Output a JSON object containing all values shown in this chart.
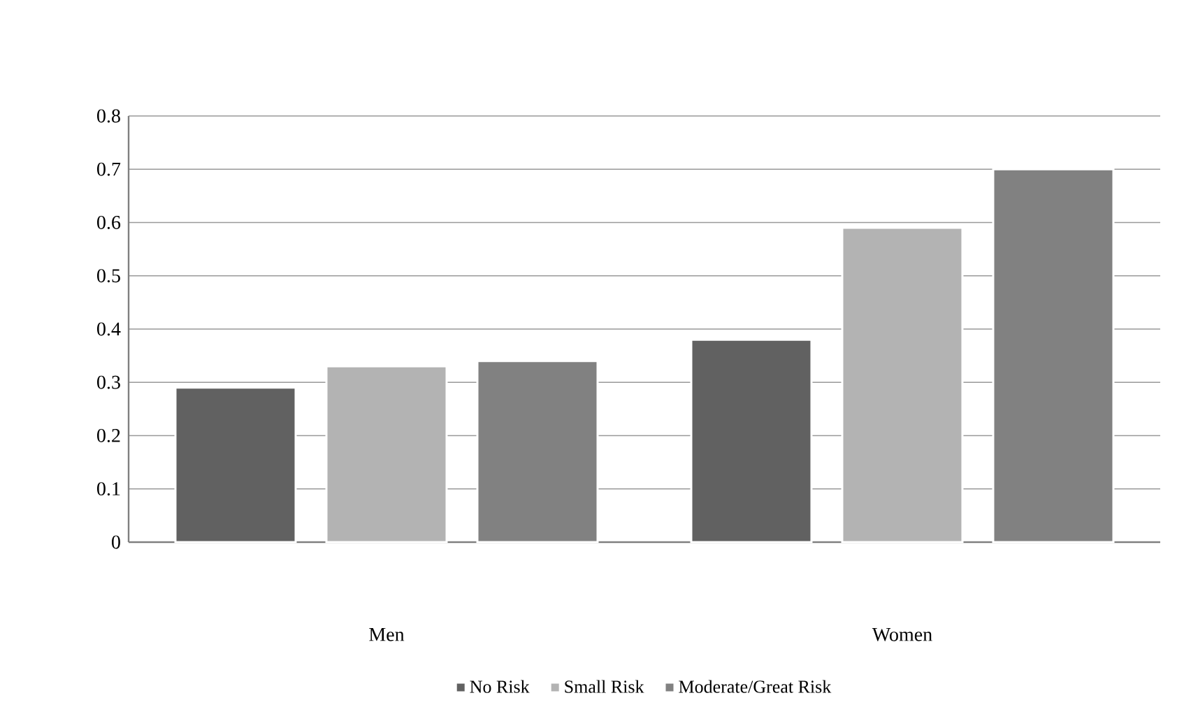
{
  "chart_data": {
    "type": "bar",
    "categories": [
      "Men",
      "Women"
    ],
    "series": [
      {
        "name": "No Risk",
        "color": "#616161",
        "values": [
          0.29,
          0.38
        ]
      },
      {
        "name": "Small Risk",
        "color": "#b3b3b3",
        "values": [
          0.33,
          0.59
        ]
      },
      {
        "name": "Moderate/Great Risk",
        "color": "#818181",
        "values": [
          0.34,
          0.7
        ]
      }
    ],
    "ylim": [
      0,
      0.8
    ],
    "yticks": [
      0,
      0.1,
      0.2,
      0.3,
      0.4,
      0.5,
      0.6,
      0.7,
      0.8
    ],
    "grid": "y",
    "legend": "bottom"
  }
}
